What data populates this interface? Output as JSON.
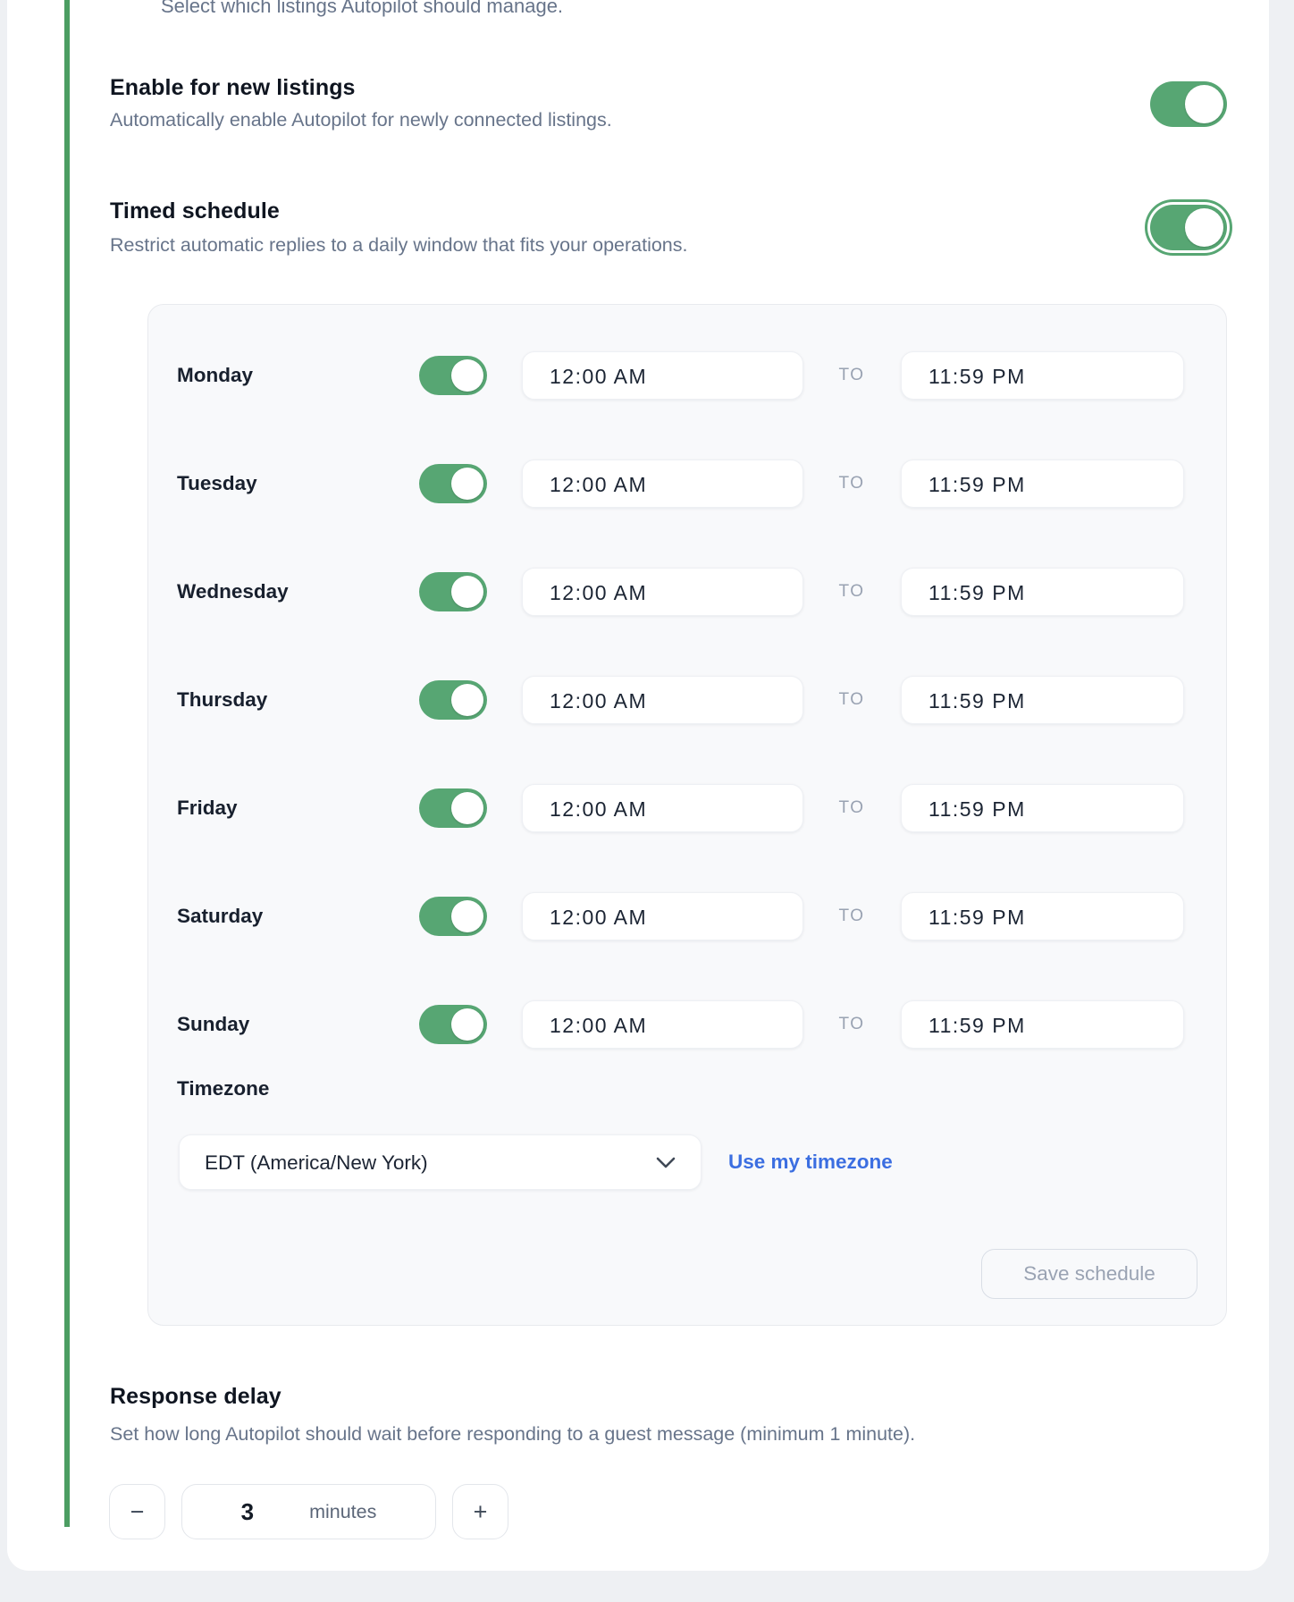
{
  "top_note": "Select which listings Autopilot should manage.",
  "settings": [
    {
      "title": "Enable for new listings",
      "description": "Automatically enable Autopilot for newly connected listings.",
      "enabled": true
    },
    {
      "title": "Timed schedule",
      "description": "Restrict automatic replies to a daily window that fits your operations.",
      "enabled": true
    }
  ],
  "schedule": {
    "to_label": "TO",
    "days": [
      {
        "label": "Monday",
        "enabled": true,
        "start": "12:00 AM",
        "end": "11:59 PM"
      },
      {
        "label": "Tuesday",
        "enabled": true,
        "start": "12:00 AM",
        "end": "11:59 PM"
      },
      {
        "label": "Wednesday",
        "enabled": true,
        "start": "12:00 AM",
        "end": "11:59 PM"
      },
      {
        "label": "Thursday",
        "enabled": true,
        "start": "12:00 AM",
        "end": "11:59 PM"
      },
      {
        "label": "Friday",
        "enabled": true,
        "start": "12:00 AM",
        "end": "11:59 PM"
      },
      {
        "label": "Saturday",
        "enabled": true,
        "start": "12:00 AM",
        "end": "11:59 PM"
      },
      {
        "label": "Sunday",
        "enabled": true,
        "start": "12:00 AM",
        "end": "11:59 PM"
      }
    ],
    "timezone_label": "Timezone",
    "timezone_value": "EDT (America/New York)",
    "use_my_timezone_label": "Use my timezone",
    "save_label": "Save schedule"
  },
  "response_delay": {
    "title": "Response delay",
    "description": "Set how long Autopilot should wait before responding to a guest message (minimum 1 minute).",
    "value": "3",
    "unit": "minutes",
    "decrement_label": "−",
    "increment_label": "+"
  },
  "colors": {
    "accent_green": "#57a673",
    "accent_bar_green": "#4c9d62",
    "link_blue": "#3b6ee1"
  }
}
